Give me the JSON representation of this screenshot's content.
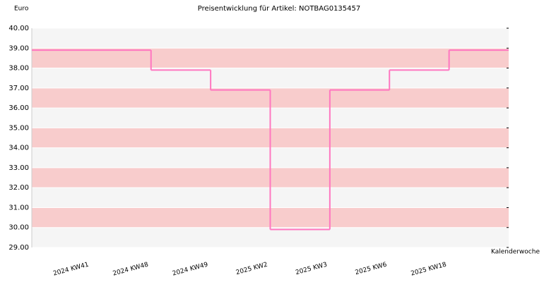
{
  "chart_data": {
    "type": "step",
    "title": "Preisentwicklung für Artikel: NOTBAG0135457",
    "y_label": "Euro",
    "x_label": "Kalenderwoche",
    "categories": [
      "2024 KW41",
      "2024 KW48",
      "2024 KW49",
      "2025 KW2",
      "2025 KW3",
      "2025 KW6",
      "2025 KW18"
    ],
    "values": [
      38.9,
      37.9,
      36.9,
      29.9,
      36.9,
      37.9,
      38.9
    ],
    "color": "#ff77c0",
    "ylim": [
      29,
      40
    ],
    "yticks": [
      {
        "value": 29,
        "label": "29.00"
      },
      {
        "value": 30,
        "label": "30.00"
      },
      {
        "value": 31,
        "label": "31.00"
      },
      {
        "value": 32,
        "label": "32.00"
      },
      {
        "value": 33,
        "label": "33.00"
      },
      {
        "value": 34,
        "label": "34.00"
      },
      {
        "value": 35,
        "label": "35.00"
      },
      {
        "value": 36,
        "label": "36.00"
      },
      {
        "value": 37,
        "label": "37.00"
      },
      {
        "value": 38,
        "label": "38.00"
      },
      {
        "value": 39,
        "label": "39.00"
      },
      {
        "value": 40,
        "label": "40.00"
      }
    ],
    "band_colors": [
      "#f5f5f5",
      "#f8cccc"
    ]
  }
}
